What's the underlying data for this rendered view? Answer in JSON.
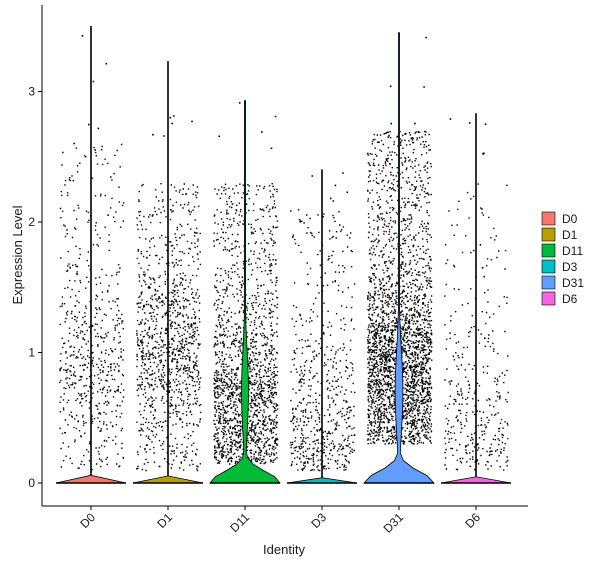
{
  "chart_data": {
    "type": "violin",
    "xlabel": "Identity",
    "ylabel": "Expression Level",
    "ylim": [
      -0.18,
      3.62
    ],
    "y_ticks": [
      0,
      1,
      2,
      3
    ],
    "grid": false,
    "legend_position": "right",
    "categories": [
      "D0",
      "D1",
      "D11",
      "D3",
      "D31",
      "D6"
    ],
    "series": [
      {
        "name": "D0",
        "color": "#F8766D",
        "max": 3.5,
        "zero_fraction": 0.7,
        "violin_bulge": 0.0
      },
      {
        "name": "D1",
        "color": "#B79F00",
        "max": 3.23,
        "zero_fraction": 0.65,
        "violin_bulge": 0.0
      },
      {
        "name": "D11",
        "color": "#00BA38",
        "max": 2.93,
        "zero_fraction": 0.4,
        "violin_bulge": 0.58
      },
      {
        "name": "D3",
        "color": "#00BFC4",
        "max": 2.4,
        "zero_fraction": 0.75,
        "violin_bulge": 0.0
      },
      {
        "name": "D31",
        "color": "#619CFF",
        "max": 3.45,
        "zero_fraction": 0.3,
        "violin_bulge": 0.65
      },
      {
        "name": "D6",
        "color": "#F564E3",
        "max": 2.83,
        "zero_fraction": 0.8,
        "violin_bulge": 0.0
      }
    ],
    "point_summary": {
      "D0": {
        "n": 600,
        "low": 0.1,
        "high": 2.6,
        "peak": 0.9
      },
      "D1": {
        "n": 1100,
        "low": 0.1,
        "high": 2.3,
        "peak": 1.0
      },
      "D11": {
        "n": 1700,
        "low": 0.15,
        "high": 2.3,
        "peak": 0.6
      },
      "D3": {
        "n": 600,
        "low": 0.1,
        "high": 2.1,
        "peak": 0.4
      },
      "D31": {
        "n": 2700,
        "low": 0.3,
        "high": 2.7,
        "peak": 0.9
      },
      "D6": {
        "n": 350,
        "low": 0.1,
        "high": 2.3,
        "peak": 0.5
      }
    }
  }
}
